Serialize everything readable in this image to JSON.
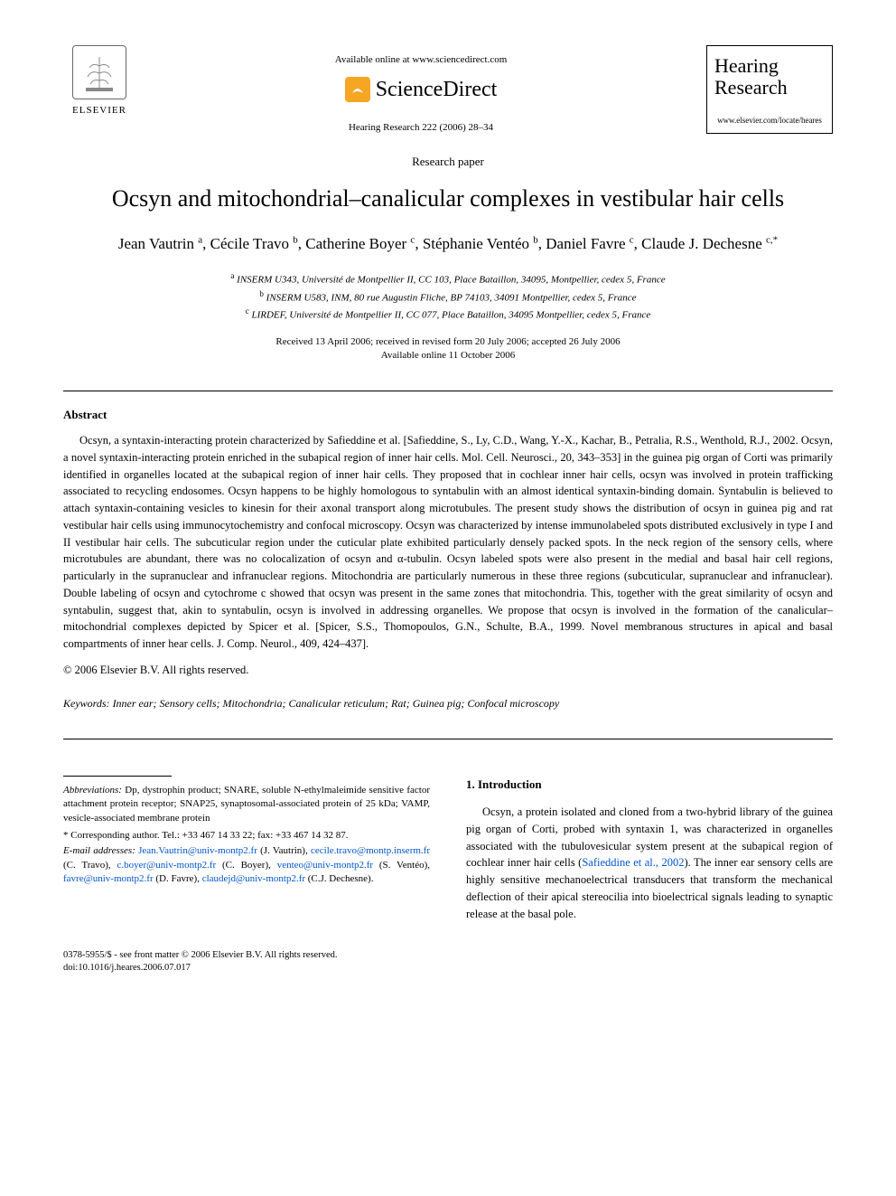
{
  "header": {
    "available_online": "Available online at www.sciencedirect.com",
    "sciencedirect": "ScienceDirect",
    "journal_ref": "Hearing Research 222 (2006) 28–34",
    "elsevier_label": "ELSEVIER",
    "journal_box_title": "Hearing Research",
    "journal_url": "www.elsevier.com/locate/heares"
  },
  "paper": {
    "type": "Research paper",
    "title": "Ocsyn and mitochondrial–canalicular complexes in vestibular hair cells",
    "authors_html": "Jean Vautrin <sup>a</sup>, Cécile Travo <sup>b</sup>, Catherine Boyer <sup>c</sup>, Stéphanie Ventéo <sup>b</sup>, Daniel Favre <sup>c</sup>, Claude J. Dechesne <sup>c,*</sup>",
    "affiliations": [
      "<sup>a</sup> INSERM U343, Université de Montpellier II, CC 103, Place Bataillon, 34095, Montpellier, cedex 5, France",
      "<sup>b</sup> INSERM U583, INM, 80 rue Augustin Fliche, BP 74103, 34091 Montpellier, cedex 5, France",
      "<sup>c</sup> LIRDEF, Université de Montpellier II, CC 077, Place Bataillon, 34095 Montpellier, cedex 5, France"
    ],
    "dates_line1": "Received 13 April 2006; received in revised form 20 July 2006; accepted 26 July 2006",
    "dates_line2": "Available online 11 October 2006"
  },
  "abstract": {
    "heading": "Abstract",
    "text": "Ocsyn, a syntaxin-interacting protein characterized by Safieddine et al. [Safieddine, S., Ly, C.D., Wang, Y.-X., Kachar, B., Petralia, R.S., Wenthold, R.J., 2002. Ocsyn, a novel syntaxin-interacting protein enriched in the subapical region of inner hair cells. Mol. Cell. Neurosci., 20, 343–353] in the guinea pig organ of Corti was primarily identified in organelles located at the subapical region of inner hair cells. They proposed that in cochlear inner hair cells, ocsyn was involved in protein trafficking associated to recycling endosomes. Ocsyn happens to be highly homologous to syntabulin with an almost identical syntaxin-binding domain. Syntabulin is believed to attach syntaxin-containing vesicles to kinesin for their axonal transport along microtubules. The present study shows the distribution of ocsyn in guinea pig and rat vestibular hair cells using immunocytochemistry and confocal microscopy. Ocsyn was characterized by intense immunolabeled spots distributed exclusively in type I and II vestibular hair cells. The subcuticular region under the cuticular plate exhibited particularly densely packed spots. In the neck region of the sensory cells, where microtubules are abundant, there was no colocalization of ocsyn and α-tubulin. Ocsyn labeled spots were also present in the medial and basal hair cell regions, particularly in the supranuclear and infranuclear regions. Mitochondria are particularly numerous in these three regions (subcuticular, supranuclear and infranuclear). Double labeling of ocsyn and cytochrome c showed that ocsyn was present in the same zones that mitochondria. This, together with the great similarity of ocsyn and syntabulin, suggest that, akin to syntabulin, ocsyn is involved in addressing organelles. We propose that ocsyn is involved in the formation of the canalicular–mitochondrial complexes depicted by Spicer et al. [Spicer, S.S., Thomopoulos, G.N., Schulte, B.A., 1999. Novel membranous structures in apical and basal compartments of inner hear cells. J. Comp. Neurol., 409, 424–437].",
    "copyright": "© 2006 Elsevier B.V. All rights reserved."
  },
  "keywords": {
    "label": "Keywords:",
    "text": " Inner ear; Sensory cells; Mitochondria; Canalicular reticulum; Rat; Guinea pig; Confocal microscopy"
  },
  "footnotes": {
    "abbrev_label": "Abbreviations:",
    "abbrev_text": " Dp, dystrophin product; SNARE, soluble N-ethylmaleimide sensitive factor attachment protein receptor; SNAP25, synaptosomal-associated protein of 25 kDa; VAMP, vesicle-associated membrane protein",
    "corr_label": "* Corresponding author.",
    "corr_text": " Tel.: +33 467 14 33 22; fax: +33 467 14 32 87.",
    "email_label": "E-mail addresses:",
    "emails": [
      {
        "addr": "Jean.Vautrin@univ-montp2.fr",
        "who": "(J. Vautrin)"
      },
      {
        "addr": "cecile.travo@montp.inserm.fr",
        "who": "(C. Travo)"
      },
      {
        "addr": "c.boyer@univ-montp2.fr",
        "who": "(C. Boyer)"
      },
      {
        "addr": "venteo@univ-montp2.fr",
        "who": "(S. Ventéo)"
      },
      {
        "addr": "favre@univ-montp2.fr",
        "who": "(D. Favre)"
      },
      {
        "addr": "claudejd@univ-montp2.fr",
        "who": "(C.J. Dechesne)"
      }
    ]
  },
  "intro": {
    "heading": "1. Introduction",
    "text_pre": "Ocsyn, a protein isolated and cloned from a two-hybrid library of the guinea pig organ of Corti, probed with syntaxin 1, was characterized in organelles associated with the tubulovesicular system present at the subapical region of cochlear inner hair cells (",
    "cite": "Safieddine et al., 2002",
    "text_post": "). The inner ear sensory cells are highly sensitive mechanoelectrical transducers that transform the mechanical deflection of their apical stereocilia into bioelectrical signals leading to synaptic release at the basal pole."
  },
  "footer": {
    "line1": "0378-5955/$ - see front matter © 2006 Elsevier B.V. All rights reserved.",
    "line2": "doi:10.1016/j.heares.2006.07.017"
  },
  "colors": {
    "link": "#0055cc",
    "text": "#000000",
    "bg": "#ffffff",
    "sd_orange": "#f5a623"
  }
}
